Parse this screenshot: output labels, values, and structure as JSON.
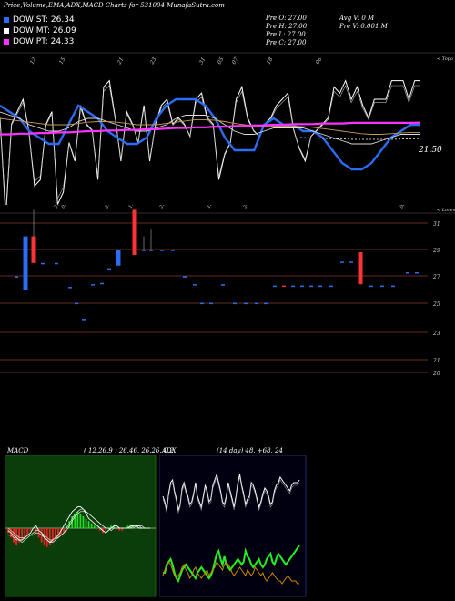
{
  "header": {
    "title": "Price,Volume,EMA,ADX,MACD Charts for 531004  MunafaSutra.com",
    "pre_open": "Pre  O: 27.00",
    "pre_high": "Pre  H: 27.00",
    "pre_low": "Pre  L: 27.00",
    "pre_close": "Pre  C: 27.00",
    "avg_vol": "Avg V: 0  M",
    "pre_vol": "Pre  V: 0.001 M"
  },
  "legend": [
    {
      "text": "DOW ST: 26.34",
      "color": "#2b6df6"
    },
    {
      "text": "DOW MT: 26.09",
      "color": "#ffffff"
    },
    {
      "text": "DOW PT: 24.33",
      "color": "#ff33ff"
    }
  ],
  "chart_data": [
    {
      "type": "line",
      "name": "price-ema-panel",
      "right_label": "21.50",
      "corner_label": "< Topo",
      "date_labels": [
        "12",
        "15",
        "21",
        "23",
        "31",
        "05",
        "07",
        "18",
        "06"
      ],
      "series": [
        {
          "role": "price",
          "color": "#ffffff",
          "values": [
            16,
            48,
            18,
            14,
            10,
            20,
            38,
            36,
            18,
            14,
            44,
            40,
            24,
            30,
            12,
            18,
            20,
            36,
            6,
            4,
            16,
            30,
            14,
            18,
            24,
            12,
            30,
            18,
            12,
            10,
            18,
            16,
            18,
            22,
            10,
            8,
            16,
            18,
            36,
            28,
            24,
            10,
            6,
            16,
            20,
            22,
            18,
            16,
            12,
            10,
            8,
            20,
            26,
            30,
            22,
            20,
            18,
            16,
            6,
            8,
            4,
            10,
            6,
            12,
            16,
            10,
            10,
            10,
            4,
            4,
            4,
            10,
            4,
            4
          ]
        },
        {
          "role": "ema-short",
          "color": "#2b6df6",
          "values": [
            27,
            26,
            25,
            23,
            22,
            21,
            21,
            24,
            27,
            26,
            25,
            23,
            22,
            21,
            21,
            22,
            25,
            27,
            28,
            28,
            28,
            27,
            25,
            22,
            20,
            20,
            20,
            24,
            25,
            24,
            24,
            23,
            23,
            22,
            20,
            18,
            17,
            17,
            18,
            20,
            22,
            23,
            24,
            24
          ]
        },
        {
          "role": "ema-mid",
          "color": "#dddddd",
          "values": [
            26,
            25.5,
            25,
            24,
            23.5,
            23,
            23,
            23.5,
            24.5,
            25,
            25,
            24.5,
            24,
            23.5,
            23,
            23,
            23.5,
            24,
            25,
            25.5,
            25.5,
            25.5,
            25,
            24,
            23,
            22.5,
            22.5,
            23,
            23.5,
            23.5,
            23.5,
            23.5,
            23,
            22.5,
            22,
            21.5,
            21,
            21,
            21,
            21.5,
            22,
            22.5,
            22.5,
            22.5
          ]
        },
        {
          "role": "ema-long",
          "color": "#cc9955",
          "values": [
            25,
            24.8,
            24.6,
            24.4,
            24.2,
            24,
            24,
            24,
            24.2,
            24.4,
            24.5,
            24.5,
            24.4,
            24.2,
            24,
            24,
            24,
            24.2,
            24.4,
            24.6,
            24.8,
            24.8,
            24.7,
            24.5,
            24.2,
            24,
            23.8,
            23.8,
            23.8,
            23.8,
            23.8,
            23.7,
            23.6,
            23.4,
            23.2,
            23,
            22.8,
            22.6,
            22.5,
            22.5,
            22.6,
            22.7,
            22.8,
            22.8
          ]
        },
        {
          "role": "ema-pt",
          "color": "#ff33ff",
          "values": [
            22.5,
            22.5,
            22.6,
            22.6,
            22.7,
            22.7,
            22.8,
            22.8,
            22.9,
            23,
            23,
            23.1,
            23.1,
            23.2,
            23.2,
            23.3,
            23.3,
            23.4,
            23.5,
            23.5,
            23.6,
            23.6,
            23.7,
            23.7,
            23.8,
            23.8,
            23.9,
            23.9,
            24,
            24,
            24.1,
            24.1,
            24.1,
            24.2,
            24.2,
            24.2,
            24.3,
            24.3,
            24.3,
            24.3,
            24.3,
            24.3,
            24.3,
            24.33
          ]
        }
      ]
    },
    {
      "type": "bar",
      "name": "candles-panel",
      "corner_label": "< Lorem",
      "date_labels": [
        "29",
        "05",
        "21",
        "19",
        "25",
        "13",
        "24",
        "06"
      ],
      "y_ticks": [
        31,
        29,
        27,
        25,
        23,
        21,
        20
      ],
      "ylim": [
        20,
        32
      ],
      "candles": [
        {
          "x": 18,
          "o": 27,
          "c": 27,
          "h": 27,
          "l": 27,
          "color": "#2b6df6"
        },
        {
          "x": 28,
          "o": 30,
          "c": 26,
          "h": 30,
          "l": 26,
          "color": "#2b6df6"
        },
        {
          "x": 37,
          "o": 30,
          "c": 28,
          "h": 32,
          "l": 28,
          "color": "#ff3333"
        },
        {
          "x": 47,
          "o": 28,
          "c": 28,
          "h": 28,
          "l": 28,
          "color": "#2b6df6"
        },
        {
          "x": 62,
          "o": 28,
          "c": 28,
          "h": 28,
          "l": 28,
          "color": "#2b6df6"
        },
        {
          "x": 77,
          "o": 26.2,
          "c": 26.2,
          "h": 26.2,
          "l": 26.2,
          "color": "#2b6df6"
        },
        {
          "x": 84,
          "o": 25,
          "c": 25,
          "h": 25,
          "l": 25,
          "color": "#2b6df6"
        },
        {
          "x": 92,
          "o": 23.8,
          "c": 23.8,
          "h": 23.8,
          "l": 23.8,
          "color": "#2b6df6"
        },
        {
          "x": 102,
          "o": 26.4,
          "c": 26.4,
          "h": 26.4,
          "l": 26.4,
          "color": "#2b6df6"
        },
        {
          "x": 112,
          "o": 26.5,
          "c": 26.5,
          "h": 26.5,
          "l": 26.5,
          "color": "#2b6df6"
        },
        {
          "x": 120,
          "o": 27.6,
          "c": 27.6,
          "h": 27.6,
          "l": 27.6,
          "color": "#2b6df6"
        },
        {
          "x": 130,
          "o": 29,
          "c": 27.8,
          "h": 29,
          "l": 27.8,
          "color": "#2b6df6"
        },
        {
          "x": 148,
          "o": 32,
          "c": 28.6,
          "h": 32,
          "l": 28.6,
          "color": "#ff3333"
        },
        {
          "x": 158,
          "o": 29,
          "c": 29,
          "h": 30,
          "l": 29,
          "color": "#2b6df6"
        },
        {
          "x": 166,
          "o": 29,
          "c": 29,
          "h": 30.5,
          "l": 29,
          "color": "#2b6df6"
        },
        {
          "x": 178,
          "o": 29,
          "c": 29,
          "h": 29,
          "l": 29,
          "color": "#2b6df6"
        },
        {
          "x": 190,
          "o": 29,
          "c": 29,
          "h": 29,
          "l": 29,
          "color": "#2b6df6"
        },
        {
          "x": 203,
          "o": 27,
          "c": 27,
          "h": 27,
          "l": 27,
          "color": "#2b6df6"
        },
        {
          "x": 214,
          "o": 26.4,
          "c": 26.4,
          "h": 26.4,
          "l": 26.4,
          "color": "#2b6df6"
        },
        {
          "x": 222,
          "o": 25,
          "c": 25,
          "h": 25,
          "l": 25,
          "color": "#2b6df6"
        },
        {
          "x": 232,
          "o": 25,
          "c": 25,
          "h": 25,
          "l": 25,
          "color": "#2b6df6"
        },
        {
          "x": 245,
          "o": 26.4,
          "c": 26.4,
          "h": 26.4,
          "l": 26.4,
          "color": "#2b6df6"
        },
        {
          "x": 258,
          "o": 25,
          "c": 25,
          "h": 25,
          "l": 25,
          "color": "#2b6df6"
        },
        {
          "x": 270,
          "o": 25,
          "c": 25,
          "h": 25,
          "l": 25,
          "color": "#2b6df6"
        },
        {
          "x": 282,
          "o": 25,
          "c": 25,
          "h": 25,
          "l": 25,
          "color": "#2b6df6"
        },
        {
          "x": 292,
          "o": 25,
          "c": 25,
          "h": 25,
          "l": 25,
          "color": "#2b6df6"
        },
        {
          "x": 302,
          "o": 26.3,
          "c": 26.3,
          "h": 26.3,
          "l": 26.3,
          "color": "#2b6df6"
        },
        {
          "x": 312,
          "o": 26.3,
          "c": 26.3,
          "h": 26.3,
          "l": 26.3,
          "color": "#ff3333"
        },
        {
          "x": 322,
          "o": 26.3,
          "c": 26.3,
          "h": 26.3,
          "l": 26.3,
          "color": "#2b6df6"
        },
        {
          "x": 332,
          "o": 26.3,
          "c": 26.3,
          "h": 26.3,
          "l": 26.3,
          "color": "#2b6df6"
        },
        {
          "x": 342,
          "o": 26.3,
          "c": 26.3,
          "h": 26.3,
          "l": 26.3,
          "color": "#2b6df6"
        },
        {
          "x": 352,
          "o": 26.3,
          "c": 26.3,
          "h": 26.3,
          "l": 26.3,
          "color": "#2b6df6"
        },
        {
          "x": 364,
          "o": 26.3,
          "c": 26.3,
          "h": 26.3,
          "l": 26.3,
          "color": "#2b6df6"
        },
        {
          "x": 376,
          "o": 28.1,
          "c": 28.1,
          "h": 28.1,
          "l": 28.1,
          "color": "#2b6df6"
        },
        {
          "x": 386,
          "o": 28.1,
          "c": 28.1,
          "h": 28.1,
          "l": 28.1,
          "color": "#2b6df6"
        },
        {
          "x": 396,
          "o": 28.8,
          "c": 26.4,
          "h": 28.8,
          "l": 26.4,
          "color": "#ff3333"
        },
        {
          "x": 408,
          "o": 26.3,
          "c": 26.3,
          "h": 26.3,
          "l": 26.3,
          "color": "#2b6df6"
        },
        {
          "x": 420,
          "o": 26.3,
          "c": 26.3,
          "h": 26.3,
          "l": 26.3,
          "color": "#2b6df6"
        },
        {
          "x": 432,
          "o": 26.3,
          "c": 26.3,
          "h": 26.3,
          "l": 26.3,
          "color": "#2b6df6"
        },
        {
          "x": 448,
          "o": 27.3,
          "c": 27.3,
          "h": 27.3,
          "l": 27.3,
          "color": "#2b6df6"
        },
        {
          "x": 458,
          "o": 27.3,
          "c": 27.3,
          "h": 27.3,
          "l": 27.3,
          "color": "#2b6df6"
        }
      ]
    },
    {
      "type": "bar",
      "name": "macd-panel",
      "title": "MACD",
      "params": "( 12,26,9 ) 26.46,  26.26,  0.2",
      "histogram": [
        -2,
        -4,
        -6,
        -7,
        -6,
        -5,
        -4,
        -3,
        -1,
        0,
        -2,
        -4,
        -6,
        -7,
        -8,
        -7,
        -6,
        -5,
        -4,
        -3,
        -2,
        1,
        3,
        5,
        6,
        7,
        6,
        5,
        4,
        3,
        2,
        1,
        0,
        -1,
        -2,
        -1,
        0,
        1,
        1,
        0,
        -1,
        -1,
        0,
        1,
        1,
        1,
        0,
        0,
        0,
        0,
        0,
        0
      ],
      "line_macd": [
        -1,
        -2,
        -3,
        -4,
        -5,
        -5,
        -4,
        -3,
        -2,
        0,
        1,
        -1,
        -2,
        -4,
        -5,
        -6,
        -5,
        -4,
        -3,
        -1,
        1,
        3,
        5,
        7,
        8,
        9,
        9,
        8,
        6,
        4,
        3,
        2,
        1,
        0,
        -1,
        -2,
        -1,
        0,
        1,
        1,
        0,
        0,
        0,
        0,
        1,
        1,
        1,
        0,
        0,
        0,
        0,
        0
      ],
      "line_signal": [
        0,
        -1,
        -2,
        -3,
        -4,
        -4,
        -4,
        -3,
        -3,
        -2,
        -1,
        -1,
        -2,
        -3,
        -4,
        -5,
        -5,
        -4,
        -4,
        -3,
        -2,
        0,
        2,
        4,
        6,
        7,
        8,
        8,
        7,
        6,
        5,
        4,
        3,
        2,
        1,
        0,
        0,
        0,
        0,
        0,
        0,
        0,
        0,
        0,
        0,
        1,
        1,
        1,
        0,
        0,
        0,
        0
      ],
      "line_extra": [
        -3,
        -3,
        -4,
        -5,
        -5,
        -6,
        -5,
        -4,
        -3,
        -3,
        -2,
        -2,
        -3,
        -4,
        -5,
        -6,
        -6,
        -5,
        -4,
        -3,
        -2,
        -1,
        1,
        3,
        5,
        6,
        7,
        7,
        7,
        6,
        5,
        4,
        3,
        2,
        1,
        0,
        0,
        -1,
        0,
        0,
        0,
        0,
        0,
        0,
        0,
        0,
        1,
        1,
        1,
        0,
        0,
        0
      ]
    },
    {
      "type": "line",
      "name": "adx-panel",
      "title": "ADX",
      "params": "(14  day) 48,  +68,  24",
      "series": [
        {
          "role": "adx",
          "color": "#ffffff",
          "values": [
            70,
            66,
            60,
            72,
            80,
            82,
            74,
            68,
            60,
            64,
            76,
            80,
            74,
            70,
            64,
            66,
            72,
            80,
            70,
            66,
            62,
            70,
            78,
            74,
            66,
            68,
            78,
            82,
            86,
            80,
            74,
            66,
            64,
            70,
            80,
            74,
            68,
            62,
            70,
            80,
            86,
            78,
            72,
            64,
            68,
            70,
            80,
            78,
            74,
            68,
            62,
            66,
            72,
            76,
            74,
            70,
            64,
            66,
            74,
            78,
            80,
            84,
            82,
            80,
            78,
            76,
            74,
            78,
            80,
            80,
            80,
            82
          ]
        },
        {
          "role": "di-plus",
          "color": "#22ee22",
          "values": [
            14,
            14,
            20,
            22,
            24,
            20,
            14,
            10,
            8,
            12,
            16,
            18,
            20,
            18,
            16,
            14,
            12,
            10,
            14,
            16,
            18,
            16,
            14,
            12,
            10,
            12,
            16,
            22,
            28,
            30,
            24,
            20,
            26,
            20,
            18,
            16,
            18,
            20,
            22,
            24,
            22,
            20,
            22,
            30,
            26,
            24,
            20,
            18,
            20,
            22,
            24,
            20,
            18,
            20,
            24,
            26,
            28,
            22,
            20,
            24,
            28,
            26,
            24,
            22,
            20,
            22,
            24,
            26,
            28,
            30,
            32,
            34
          ]
        },
        {
          "role": "di-minus",
          "color": "#cc8800",
          "values": [
            12,
            16,
            18,
            22,
            20,
            16,
            12,
            10,
            12,
            14,
            18,
            20,
            16,
            14,
            10,
            12,
            16,
            18,
            14,
            12,
            10,
            12,
            14,
            16,
            12,
            14,
            16,
            18,
            22,
            20,
            18,
            16,
            20,
            22,
            20,
            18,
            14,
            12,
            14,
            16,
            18,
            16,
            14,
            12,
            16,
            14,
            12,
            14,
            18,
            16,
            14,
            12,
            14,
            10,
            8,
            10,
            12,
            14,
            12,
            10,
            8,
            8,
            6,
            8,
            10,
            12,
            10,
            8,
            8,
            8,
            6,
            6
          ]
        }
      ]
    }
  ]
}
